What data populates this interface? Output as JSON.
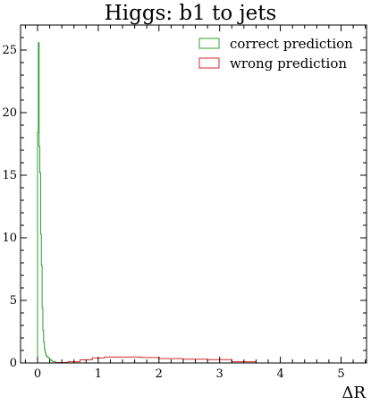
{
  "chart_data": {
    "type": "histogram",
    "title": "Higgs: b1 to jets",
    "xlabel": "ΔR",
    "ylabel": "",
    "xlim": [
      -0.28,
      5.42
    ],
    "ylim": [
      0,
      27
    ],
    "xticks": [
      0,
      1,
      2,
      3,
      4,
      5
    ],
    "xtick_labels": [
      "0",
      "1",
      "2",
      "3",
      "4",
      "5"
    ],
    "yticks": [
      0,
      5,
      10,
      15,
      20,
      25
    ],
    "ytick_labels": [
      "0",
      "5",
      "10",
      "15",
      "20",
      "25"
    ],
    "grid": false,
    "legend_position": "top-right",
    "histtype": "step",
    "series": [
      {
        "name": "correct prediction",
        "color": "#2ca02c",
        "bin_edges": [
          0.0,
          0.0125,
          0.025,
          0.0375,
          0.05,
          0.0625,
          0.075,
          0.0875,
          0.1,
          0.1125,
          0.125,
          0.1375,
          0.15,
          0.175,
          0.2,
          0.225,
          0.25,
          0.3
        ],
        "density": [
          18.4,
          25.6,
          17.3,
          15.2,
          10.3,
          7.8,
          4.4,
          2.6,
          1.7,
          1.1,
          0.8,
          0.6,
          0.5,
          0.4,
          0.25,
          0.2,
          0.1
        ]
      },
      {
        "name": "wrong prediction",
        "color": "#d62728",
        "bin_edges": [
          0.3,
          0.5,
          0.7,
          0.9,
          1.1,
          1.4,
          1.7,
          2.0,
          2.4,
          2.8,
          3.2,
          3.6
        ],
        "density": [
          0.04,
          0.1,
          0.25,
          0.4,
          0.47,
          0.47,
          0.44,
          0.35,
          0.3,
          0.27,
          0.1
        ]
      }
    ]
  }
}
